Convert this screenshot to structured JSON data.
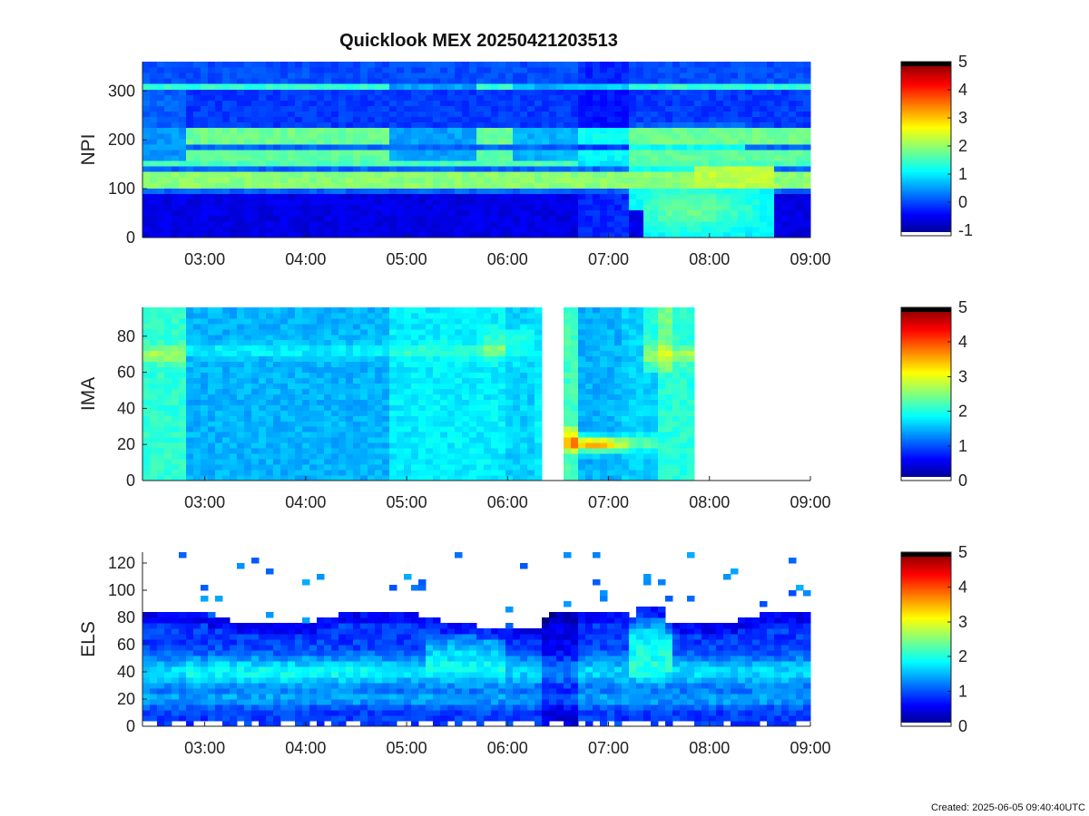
{
  "title": "Quicklook MEX 20250421203513",
  "footer": "Created: 2025-06-05 09:40:40UTC",
  "chart_data": [
    {
      "type": "heatmap",
      "name": "NPI",
      "ylabel": "NPI",
      "ylim": [
        0,
        360
      ],
      "yticks": [
        0,
        100,
        200,
        300
      ],
      "xlim": [
        "02:23",
        "09:00"
      ],
      "xticks": [
        "03:00",
        "04:00",
        "05:00",
        "06:00",
        "07:00",
        "08:00",
        "09:00"
      ],
      "colorbar": {
        "min": -1.2,
        "max": 5,
        "ticks": [
          -1,
          0,
          1,
          2,
          3,
          4,
          5
        ]
      },
      "colormap": "jet"
    },
    {
      "type": "heatmap",
      "name": "IMA",
      "ylabel": "IMA",
      "ylim": [
        0,
        96
      ],
      "yticks": [
        0,
        20,
        40,
        60,
        80
      ],
      "xlim": [
        "02:23",
        "09:00"
      ],
      "xticks": [
        "03:00",
        "04:00",
        "05:00",
        "06:00",
        "07:00",
        "08:00",
        "09:00"
      ],
      "colorbar": {
        "min": 0,
        "max": 5,
        "ticks": [
          0,
          1,
          2,
          3,
          4,
          5
        ]
      },
      "colormap": "jet"
    },
    {
      "type": "heatmap",
      "name": "ELS",
      "ylabel": "ELS",
      "ylim": [
        0,
        128
      ],
      "yticks": [
        0,
        20,
        40,
        60,
        80,
        100,
        120
      ],
      "xlim": [
        "02:23",
        "09:00"
      ],
      "xticks": [
        "03:00",
        "04:00",
        "05:00",
        "06:00",
        "07:00",
        "08:00",
        "09:00"
      ],
      "colorbar": {
        "min": 0,
        "max": 5,
        "ticks": [
          0,
          1,
          2,
          3,
          4,
          5
        ]
      },
      "colormap": "jet"
    }
  ]
}
